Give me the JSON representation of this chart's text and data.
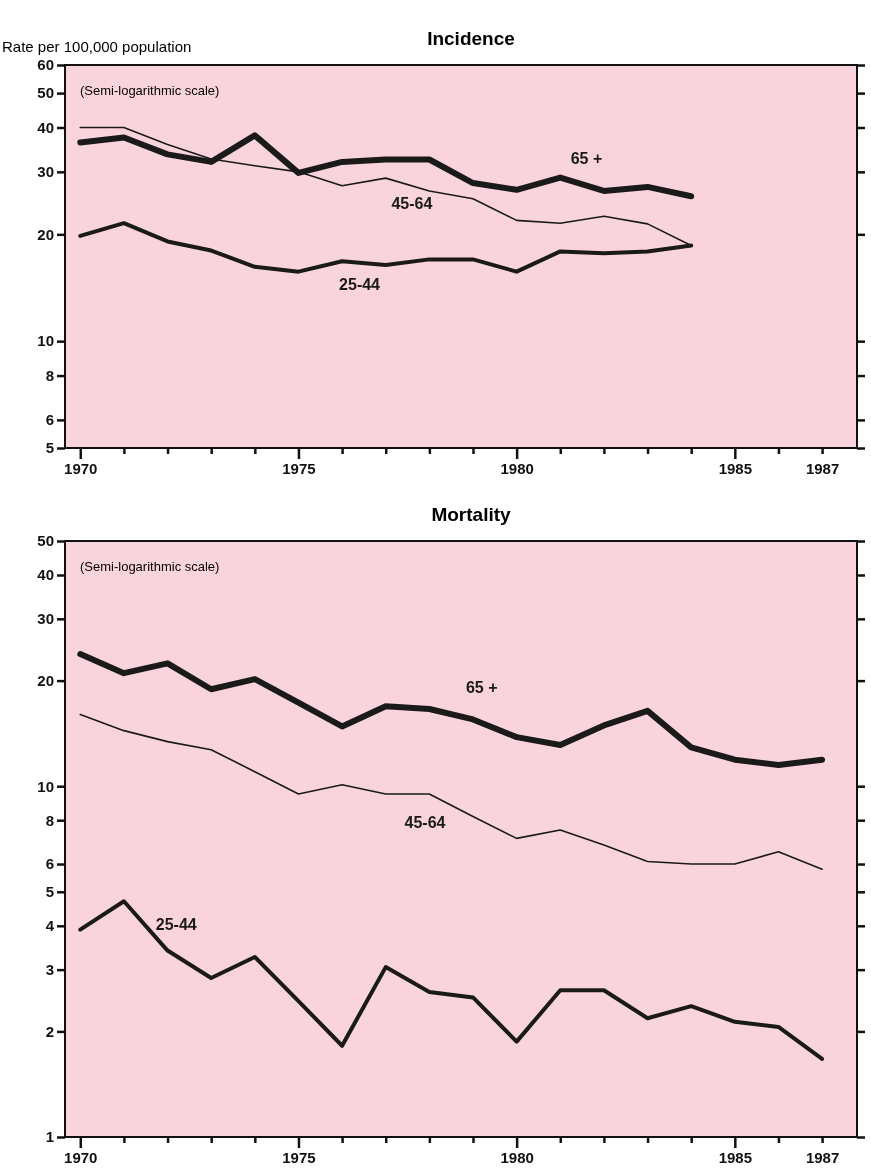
{
  "chart_data": [
    {
      "type": "line",
      "title": "Incidence",
      "ylabel": "Rate per 100,000 population",
      "annotations": [
        "(Semi-logarithmic scale)"
      ],
      "log": true,
      "grid": false,
      "legend": false,
      "marker": "none",
      "line_style": "solid",
      "x": [
        1970,
        1971,
        1972,
        1973,
        1974,
        1975,
        1976,
        1977,
        1978,
        1979,
        1980,
        1981,
        1982,
        1983,
        1984
      ],
      "xlim": [
        1969.65,
        1987.8
      ],
      "xticks": [
        1970,
        {
          "value": 1971,
          "label": null
        },
        {
          "value": 1972,
          "label": null
        },
        {
          "value": 1973,
          "label": null
        },
        {
          "value": 1974,
          "label": null
        },
        1975,
        {
          "value": 1976,
          "label": null
        },
        {
          "value": 1977,
          "label": null
        },
        {
          "value": 1978,
          "label": null
        },
        {
          "value": 1979,
          "label": null
        },
        1980,
        {
          "value": 1981,
          "label": null
        },
        {
          "value": 1982,
          "label": null
        },
        {
          "value": 1983,
          "label": null
        },
        {
          "value": 1984,
          "label": null
        },
        1985,
        {
          "value": 1986,
          "label": null
        },
        1987
      ],
      "ylim": [
        5,
        60
      ],
      "yticks": [
        5,
        6,
        8,
        10,
        20,
        30,
        40,
        50,
        60
      ],
      "series": [
        {
          "name": "65 +",
          "color": "#1a1a1a",
          "values": [
            36.3,
            37.5,
            33.6,
            32,
            38,
            29.8,
            32,
            32.5,
            32.5,
            27.9,
            26.7,
            28.9,
            26.5,
            27.2,
            25.6
          ]
        },
        {
          "name": "45-64",
          "color": "#1a1a1a",
          "values": [
            40,
            40,
            35.8,
            32.6,
            31.2,
            30,
            27.4,
            28.8,
            26.5,
            25.2,
            21.9,
            21.5,
            22.5,
            21.4,
            18.6
          ]
        },
        {
          "name": "25-44",
          "color": "#1a1a1a",
          "values": [
            19.8,
            21.5,
            19.1,
            18,
            16.2,
            15.7,
            16.8,
            16.4,
            17,
            17,
            15.7,
            17.9,
            17.7,
            17.9,
            18.6
          ]
        }
      ]
    },
    {
      "type": "line",
      "title": "Mortality",
      "annotations": [
        "(Semi-logarithmic scale)"
      ],
      "log": true,
      "grid": false,
      "legend": false,
      "marker": "none",
      "line_style": "solid",
      "x": [
        1970,
        1971,
        1972,
        1973,
        1974,
        1975,
        1976,
        1977,
        1978,
        1979,
        1980,
        1981,
        1982,
        1983,
        1984,
        1985,
        1986,
        1987
      ],
      "xlim": [
        1969.65,
        1987.8
      ],
      "xticks": [
        1970,
        {
          "value": 1971,
          "label": null
        },
        {
          "value": 1972,
          "label": null
        },
        {
          "value": 1973,
          "label": null
        },
        {
          "value": 1974,
          "label": null
        },
        1975,
        {
          "value": 1976,
          "label": null
        },
        {
          "value": 1977,
          "label": null
        },
        {
          "value": 1978,
          "label": null
        },
        {
          "value": 1979,
          "label": null
        },
        1980,
        {
          "value": 1981,
          "label": null
        },
        {
          "value": 1982,
          "label": null
        },
        {
          "value": 1983,
          "label": null
        },
        {
          "value": 1984,
          "label": null
        },
        1985,
        {
          "value": 1986,
          "label": null
        },
        1987
      ],
      "ylim": [
        1,
        50
      ],
      "yticks": [
        1,
        2,
        3,
        4,
        5,
        6,
        8,
        10,
        20,
        30,
        40,
        50
      ],
      "series": [
        {
          "name": "65 +",
          "color": "#1a1a1a",
          "values": [
            23.8,
            21,
            22.4,
            18.9,
            20.2,
            17.3,
            14.8,
            16.9,
            16.6,
            15.5,
            13.8,
            13.1,
            14.9,
            16.4,
            12.9,
            11.9,
            11.5,
            11.9
          ]
        },
        {
          "name": "45-64",
          "color": "#1a1a1a",
          "values": [
            16,
            14.4,
            13.4,
            12.7,
            11,
            9.5,
            10.1,
            9.5,
            9.5,
            8.2,
            7.1,
            7.5,
            6.8,
            6.1,
            6,
            6,
            6.5,
            5.8
          ]
        },
        {
          "name": "25-44",
          "color": "#1a1a1a",
          "values": [
            3.9,
            4.7,
            3.4,
            2.84,
            3.26,
            2.44,
            1.82,
            3.05,
            2.59,
            2.5,
            1.87,
            2.62,
            2.62,
            2.18,
            2.36,
            2.13,
            2.06,
            1.67
          ]
        }
      ]
    }
  ]
}
